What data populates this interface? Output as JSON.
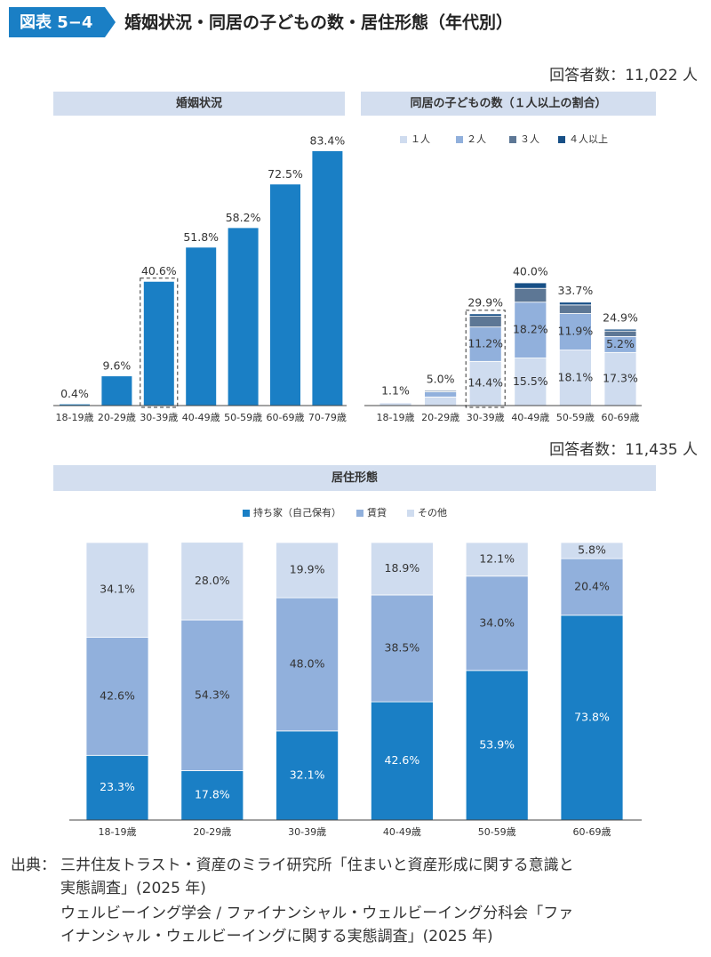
{
  "header": {
    "label": "図表 5−4",
    "title": "婚姻状況・同居の子どもの数・居住形態（年代別）"
  },
  "respondents": [
    "回答者数：11,022 人",
    "回答者数：11,435 人"
  ],
  "chart_data": [
    {
      "type": "bar",
      "title": "婚姻状況",
      "color": "#1a7fc5",
      "categories": [
        "18-19歳",
        "20-29歳",
        "30-39歳",
        "40-49歳",
        "50-59歳",
        "60-69歳",
        "70-79歳"
      ],
      "values": [
        0.4,
        9.6,
        40.6,
        51.8,
        58.2,
        72.5,
        83.4
      ],
      "value_labels": [
        "0.4%",
        "9.6%",
        "40.6%",
        "51.8%",
        "58.2%",
        "72.5%",
        "83.4%"
      ]
    },
    {
      "type": "stacked_bar",
      "title": "同居の子どもの数（１人以上の割合）",
      "categories": [
        "18-19歳",
        "20-29歳",
        "30-39歳",
        "40-49歳",
        "50-59歳",
        "60-69歳"
      ],
      "series": [
        {
          "name": "１人",
          "color": "#cfdcef",
          "values": [
            0.9,
            2.8,
            14.4,
            15.5,
            18.1,
            17.3
          ],
          "value_labels": [
            null,
            null,
            "14.4%",
            "15.5%",
            "18.1%",
            "17.3%"
          ]
        },
        {
          "name": "２人",
          "color": "#91b0dc",
          "values": [
            0.2,
            1.7,
            11.2,
            18.2,
            11.9,
            5.2
          ],
          "value_labels": [
            null,
            null,
            "11.2%",
            "18.2%",
            "11.9%",
            "5.2%"
          ]
        },
        {
          "name": "３人",
          "color": "#5d7795",
          "values": [
            0,
            0.4,
            3.5,
            4.5,
            2.8,
            1.8
          ]
        },
        {
          "name": "４人以上",
          "color": "#174f86",
          "values": [
            0,
            0.1,
            0.8,
            1.8,
            0.9,
            0.6
          ]
        }
      ],
      "totals": [
        1.1,
        5.0,
        29.9,
        40.0,
        33.7,
        24.9
      ],
      "total_labels": [
        "1.1%",
        "5.0%",
        "29.9%",
        "40.0%",
        "33.7%",
        "24.9%"
      ]
    },
    {
      "type": "stacked_bar",
      "title": "居住形態",
      "categories": [
        "18-19歳",
        "20-29歳",
        "30-39歳",
        "40-49歳",
        "50-59歳",
        "60-69歳"
      ],
      "series": [
        {
          "name": "持ち家（自己保有）",
          "color": "#1a7fc5",
          "values": [
            23.3,
            17.8,
            32.1,
            42.6,
            53.9,
            73.8
          ],
          "value_labels": [
            "23.3%",
            "17.8%",
            "32.1%",
            "42.6%",
            "53.9%",
            "73.8%"
          ]
        },
        {
          "name": "賃貸",
          "color": "#91b0dc",
          "values": [
            42.6,
            54.3,
            48.0,
            38.5,
            34.0,
            20.4
          ],
          "value_labels": [
            "42.6%",
            "54.3%",
            "48.0%",
            "38.5%",
            "34.0%",
            "20.4%"
          ]
        },
        {
          "name": "その他",
          "color": "#cfdcef",
          "values": [
            34.1,
            28.0,
            19.9,
            18.9,
            12.1,
            5.8
          ],
          "value_labels": [
            "34.1%",
            "28.0%",
            "19.9%",
            "18.9%",
            "12.1%",
            "5.8%"
          ]
        }
      ]
    }
  ],
  "source": {
    "label": "出典：",
    "lines": [
      "三井住友トラスト・資産のミライ研究所「住まいと資産形成に関する意識と",
      "実態調査」(2025 年)",
      "ウェルビーイング学会 / ファイナンシャル・ウェルビーイング分科会「ファ",
      "イナンシャル・ウェルビーイングに関する実態調査」(2025 年)"
    ]
  }
}
